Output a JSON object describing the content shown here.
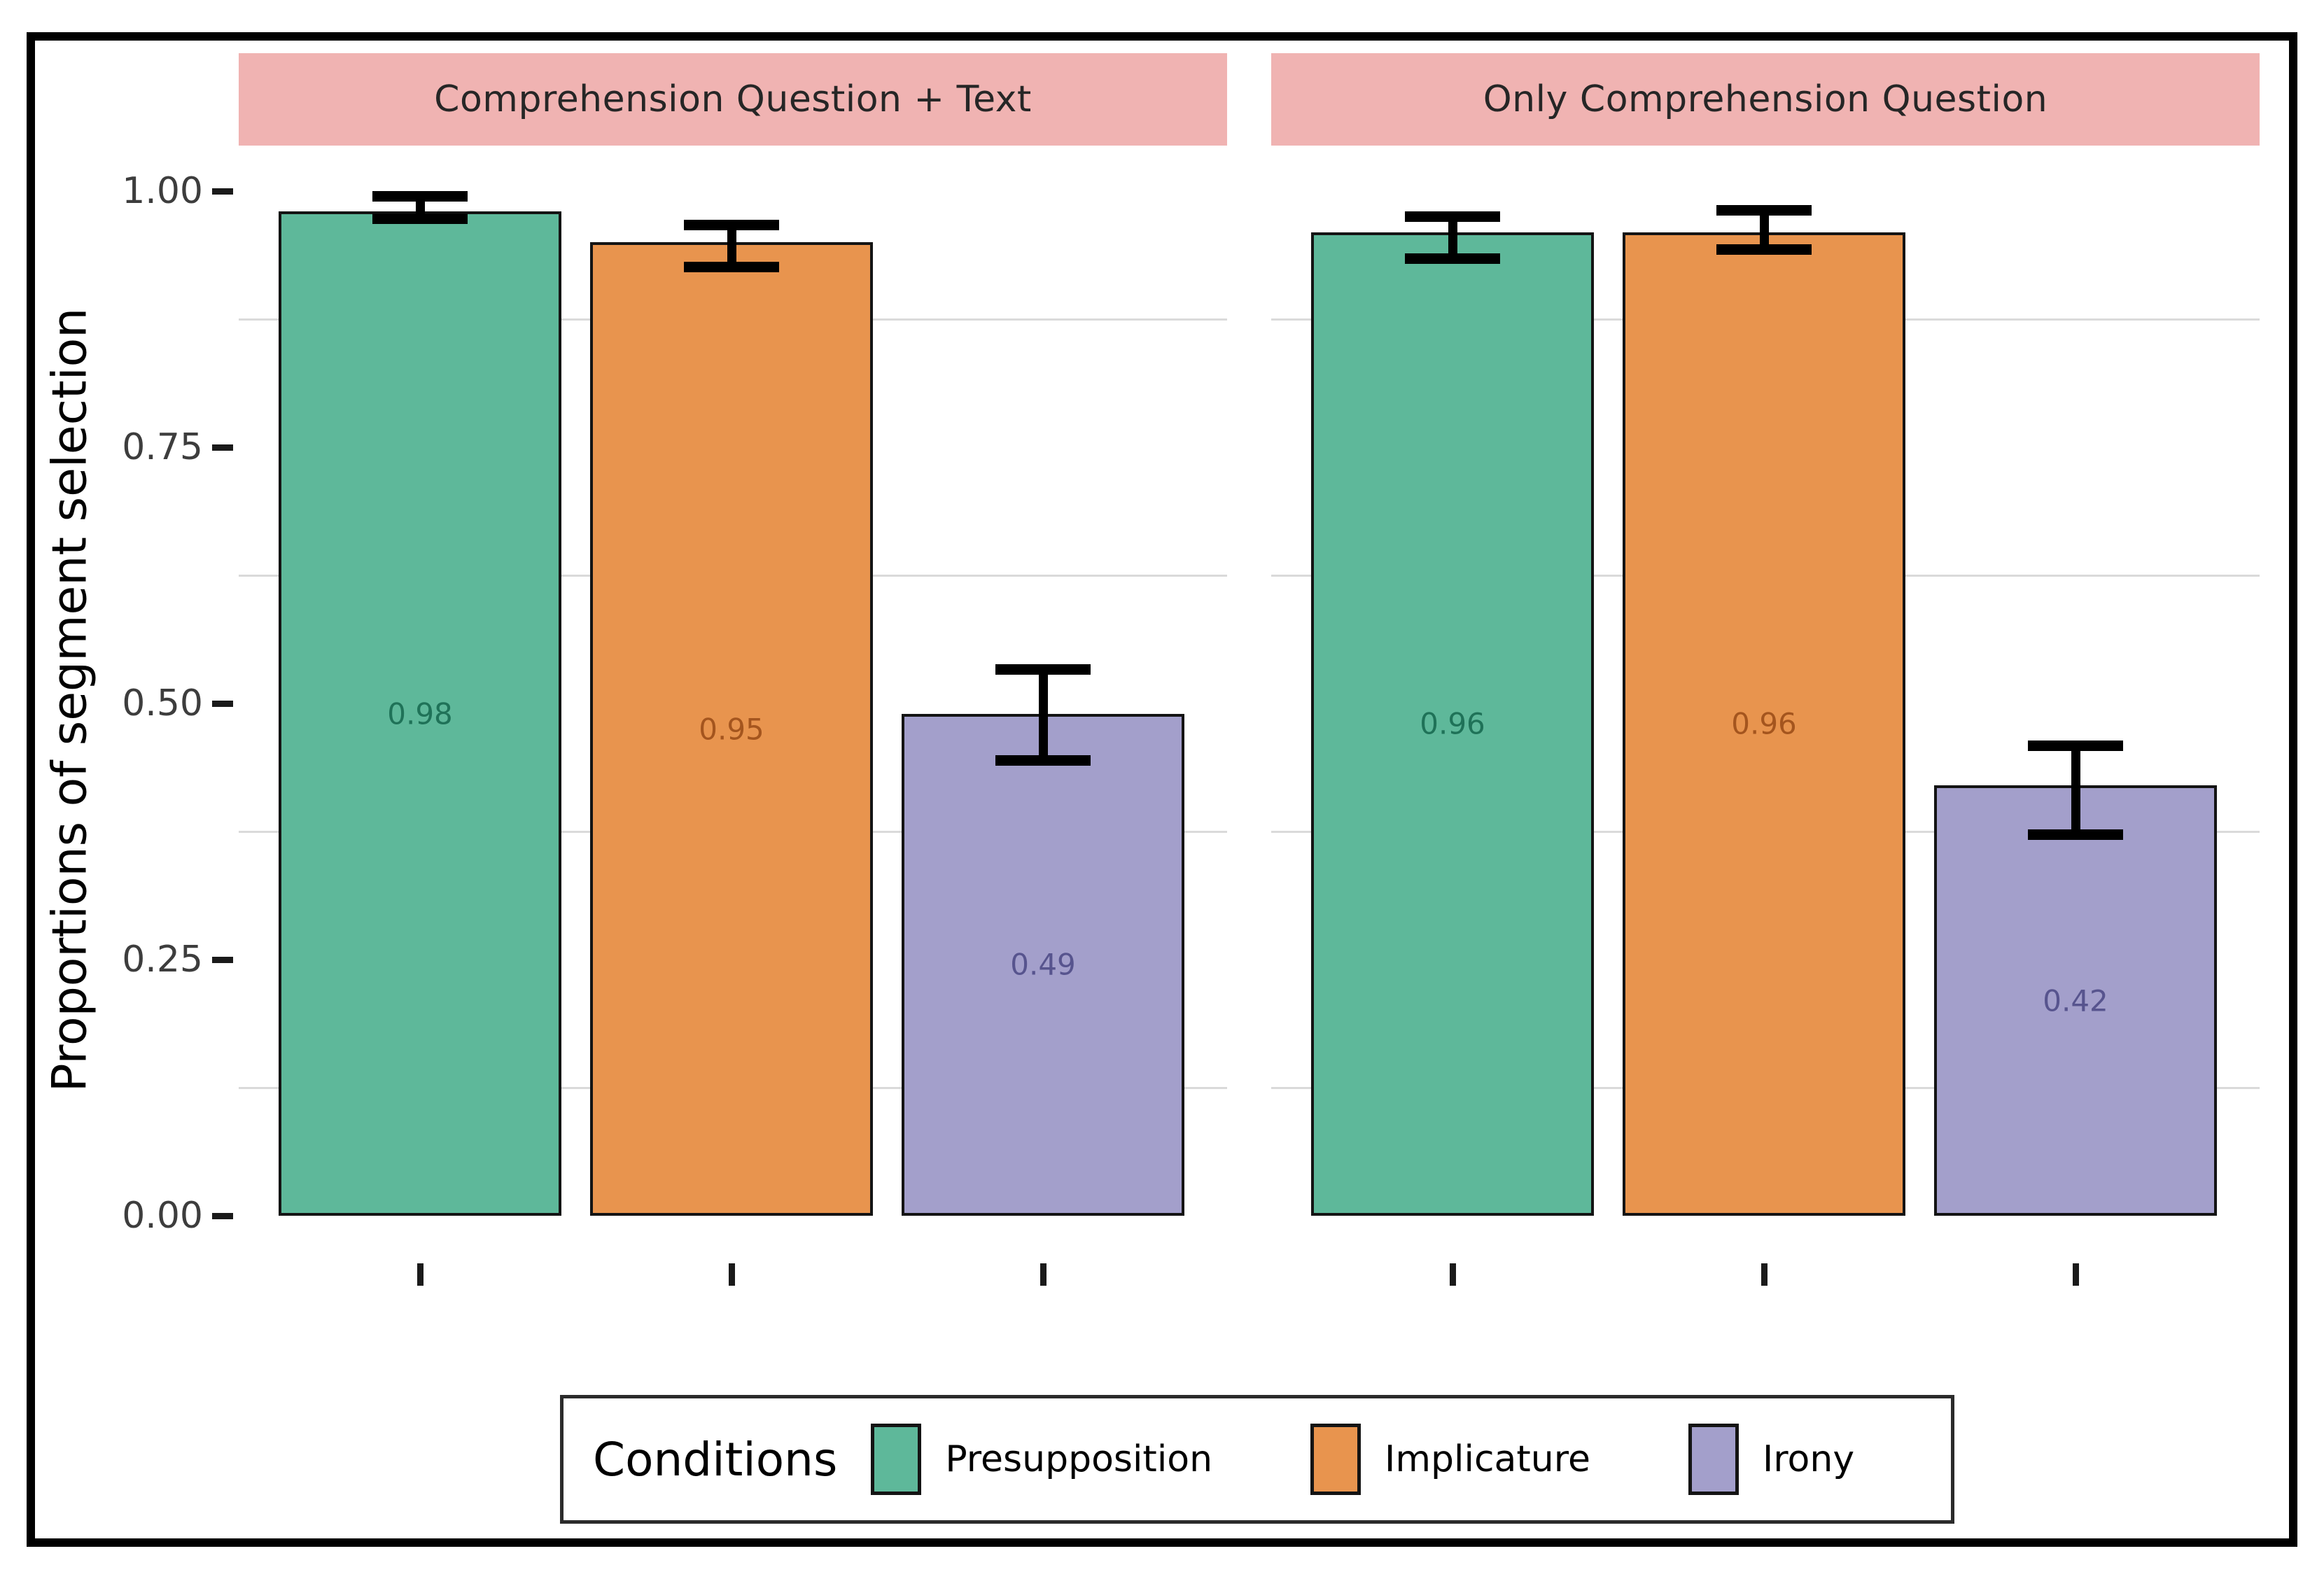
{
  "figure": {
    "background": "#ffffff",
    "border_color": "#000000"
  },
  "strip": {
    "background": "#F0B3B2",
    "text_color": "#262626"
  },
  "y_axis": {
    "title": "Proportions of segment selection",
    "ticks": [
      "1.00",
      "0.75",
      "0.50",
      "0.25",
      "0.00"
    ],
    "tick_values": [
      1.0,
      0.75,
      0.5,
      0.25,
      0.0
    ],
    "minor_gridlines": [
      0.875,
      0.625,
      0.375,
      0.125
    ],
    "gridline_color": "#dadada",
    "tick_color": "#1a1a1a",
    "label_color": "#3d3d3d"
  },
  "legend": {
    "title": "Conditions",
    "items": [
      {
        "label": "Presupposition",
        "color": "#5EB89A"
      },
      {
        "label": "Implicature",
        "color": "#E8944E"
      },
      {
        "label": "Irony",
        "color": "#A39FCB"
      }
    ]
  },
  "chart_data": {
    "type": "bar",
    "ylabel": "Proportions of segment selection",
    "ylim": [
      0,
      1.05
    ],
    "grid": "minor-horizontal",
    "legend_position": "bottom",
    "conditions": [
      "Presupposition",
      "Implicature",
      "Irony"
    ],
    "bar_colors": {
      "Presupposition": "#5EB89A",
      "Implicature": "#E8944E",
      "Irony": "#A39FCB"
    },
    "bar_label_colors": {
      "Presupposition": "#1F7258",
      "Implicature": "#A4551E",
      "Irony": "#57548E"
    },
    "error_bar_color": "#000000",
    "facets": [
      {
        "title": "Comprehension Question + Text",
        "bars": [
          {
            "condition": "Presupposition",
            "value": 0.98,
            "label": "0.98",
            "err_low": 0.973,
            "err_high": 0.995
          },
          {
            "condition": "Implicature",
            "value": 0.95,
            "label": "0.95",
            "err_low": 0.926,
            "err_high": 0.967
          },
          {
            "condition": "Irony",
            "value": 0.49,
            "label": "0.49",
            "err_low": 0.444,
            "err_high": 0.533
          }
        ]
      },
      {
        "title": "Only Comprehension Question",
        "bars": [
          {
            "condition": "Presupposition",
            "value": 0.96,
            "label": "0.96",
            "err_low": 0.934,
            "err_high": 0.975
          },
          {
            "condition": "Implicature",
            "value": 0.96,
            "label": "0.96",
            "err_low": 0.943,
            "err_high": 0.981
          },
          {
            "condition": "Irony",
            "value": 0.42,
            "label": "0.42",
            "err_low": 0.372,
            "err_high": 0.459
          }
        ]
      }
    ]
  }
}
